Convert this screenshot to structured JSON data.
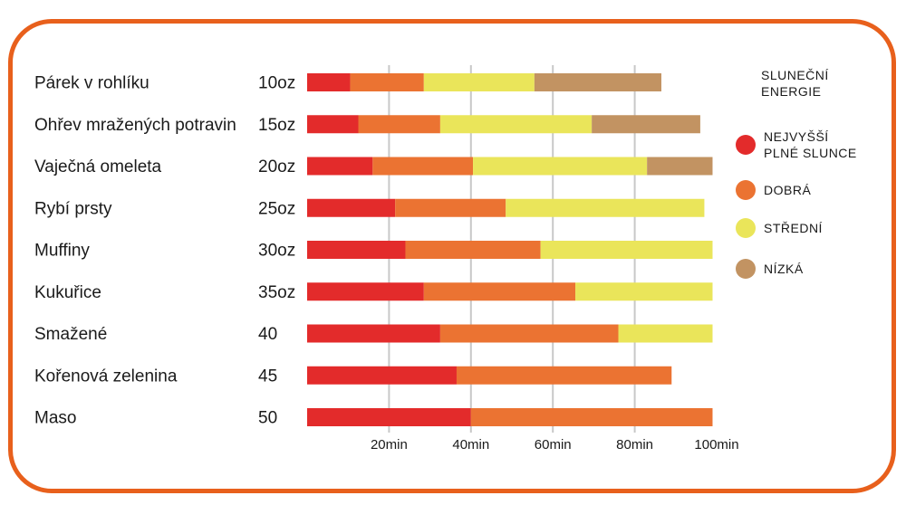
{
  "chart_data": {
    "type": "bar",
    "orientation": "horizontal",
    "stacked": true,
    "categories": [
      "Párek v rohlíku",
      "Ohřev mražených potravin",
      "Vaječná omeleta",
      "Rybí prsty",
      "Muffiny",
      "Kukuřice",
      "Smažené",
      "Kořenová zelenina",
      "Maso"
    ],
    "quantities": [
      "10oz",
      "15oz",
      "20oz",
      "25oz",
      "30oz",
      "35oz",
      "40",
      "45",
      "50"
    ],
    "series": [
      {
        "name": "NEJVYŠŠÍ PLNÉ SLUNCE",
        "color": "#e32b2b",
        "values": [
          10.5,
          12.5,
          16,
          21.5,
          24,
          28.5,
          32.5,
          36.5,
          40
        ]
      },
      {
        "name": "DOBRÁ",
        "color": "#eb7332",
        "values": [
          18,
          20,
          24.5,
          27,
          33,
          37,
          43.5,
          52.5,
          59
        ]
      },
      {
        "name": "STŘEDNÍ",
        "color": "#eae55a",
        "values": [
          27,
          37,
          42.5,
          48.5,
          42,
          33.5,
          23,
          0,
          0
        ]
      },
      {
        "name": "NÍZKÁ",
        "color": "#c29362",
        "values": [
          31,
          26.5,
          16,
          0,
          0,
          0,
          0,
          0,
          0
        ]
      }
    ],
    "x_ticks": [
      20,
      40,
      60,
      80,
      100
    ],
    "x_tick_labels": [
      "20min",
      "40min",
      "60min",
      "80min",
      "100min"
    ],
    "xlim": [
      0,
      100
    ],
    "grid": true,
    "legend": {
      "title": "SLUNEČNÍ ENERGIE",
      "position": "right"
    }
  }
}
